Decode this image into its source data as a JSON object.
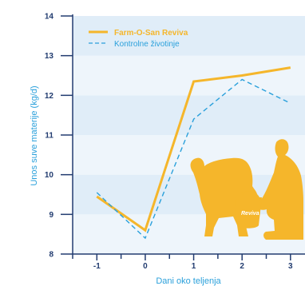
{
  "chart_data": {
    "type": "line",
    "xlabel": "Dani oko teljenja",
    "ylabel": "Unos suve materije (kg/d)",
    "x": [
      -1,
      0,
      1,
      2,
      3
    ],
    "x_ticks": [
      "-1",
      "0",
      "1",
      "2",
      "3"
    ],
    "y_ticks": [
      "8",
      "9",
      "10",
      "11",
      "12",
      "13",
      "14"
    ],
    "xlim": [
      -1.5,
      3.3
    ],
    "ylim": [
      8,
      14
    ],
    "series": [
      {
        "name": "Farm-O-San Reviva",
        "values": [
          9.45,
          8.6,
          12.35,
          12.5,
          12.7
        ],
        "color": "#f5b62b",
        "style": "solid"
      },
      {
        "name": "Kontrolne životinje",
        "values": [
          9.55,
          8.4,
          11.4,
          12.4,
          11.8
        ],
        "color": "#2aa0db",
        "style": "dashed"
      }
    ],
    "legend": "top-left",
    "grid": "horizontal-bands",
    "band_colors": [
      "#eef5fb",
      "#e0edf8"
    ],
    "axis_color": "#223c70"
  },
  "illustration": {
    "label": "Reviva",
    "color": "#f5b62b"
  }
}
